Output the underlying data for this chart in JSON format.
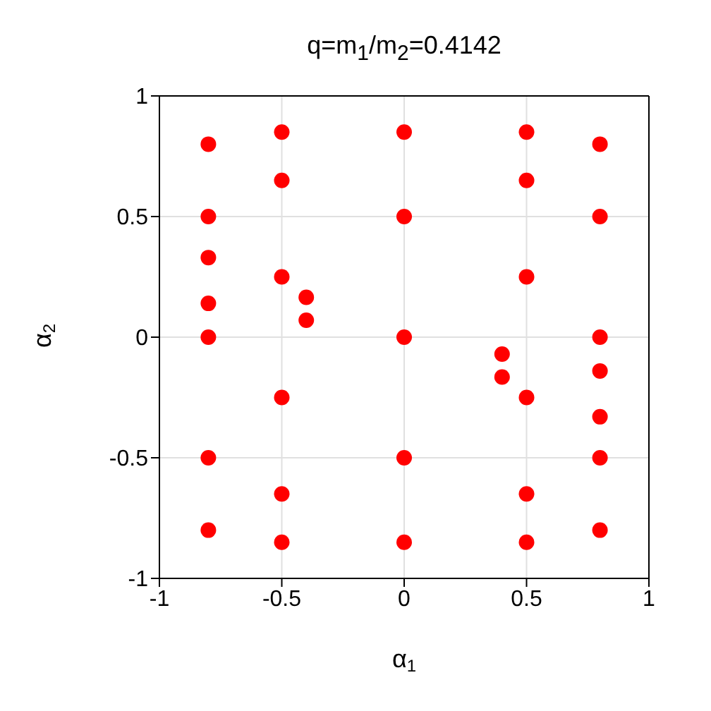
{
  "chart_data": {
    "type": "scatter",
    "title": "q=m$_{1}$/m$_{2}$=0.4142",
    "xlabel": "α$_{1}$",
    "ylabel": "α$_{2}$",
    "series": [
      {
        "color": "#ff0000",
        "x": [
          -0.8,
          -0.8,
          -0.8,
          -0.8,
          -0.8,
          -0.8,
          -0.8,
          -0.5,
          -0.5,
          -0.5,
          -0.5,
          -0.5,
          -0.5,
          -0.4,
          -0.4,
          0,
          0,
          0,
          0,
          0,
          0.4,
          0.4,
          0.5,
          0.5,
          0.5,
          0.5,
          0.5,
          0.5,
          0.8,
          0.8,
          0.8,
          0.8,
          0.8,
          0.8,
          0.8
        ],
        "values": [
          0.8,
          0.5,
          0.33,
          0.14,
          0,
          -0.5,
          -0.8,
          0.85,
          0.65,
          0.25,
          -0.25,
          -0.65,
          -0.85,
          0.165,
          0.07,
          0.85,
          0.5,
          0,
          -0.5,
          -0.85,
          -0.07,
          -0.165,
          0.85,
          0.65,
          0.25,
          -0.25,
          -0.65,
          -0.85,
          0.8,
          0.5,
          0,
          -0.14,
          -0.33,
          -0.5,
          -0.8
        ]
      }
    ],
    "xlim": [
      -1,
      1
    ],
    "ylim": [
      -1,
      1
    ],
    "xticks": [
      -1,
      -0.5,
      0,
      0.5,
      1
    ],
    "yticks": [
      -1,
      -0.5,
      0,
      0.5,
      1
    ],
    "grid": true,
    "marker": "circle"
  }
}
